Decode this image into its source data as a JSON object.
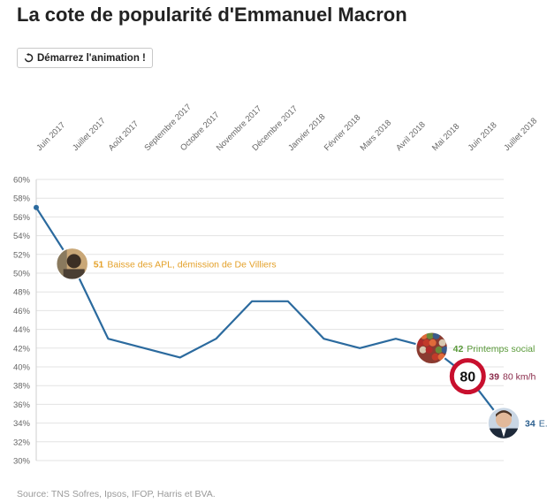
{
  "page": {
    "title": "La cote de popularité d'Emmanuel Macron",
    "button_label": "Démarrez l'animation !",
    "source": "Source: TNS Sofres, Ipsos, IFOP, Harris et BVA."
  },
  "chart_data": {
    "type": "line",
    "title": "La cote de popularité d'Emmanuel Macron",
    "categories": [
      "Juin 2017",
      "Juillet 2017",
      "Août 2017",
      "Septembre 2017",
      "Octobre 2017",
      "Novembre 2017",
      "Décembre 2017",
      "Janvier 2018",
      "Février 2018",
      "Mars 2018",
      "Avril 2018",
      "Mai 2018",
      "Juin 2018",
      "Juillet 2018"
    ],
    "series": [
      {
        "color": "#2b6a9e",
        "points": [
          {
            "x": "Juin 2017",
            "y": 57
          },
          {
            "x": "Juillet 2017",
            "y": 51
          },
          {
            "x": "Août 2017",
            "y": 43
          },
          {
            "x": "Octobre 2017",
            "y": 41
          },
          {
            "x": "Novembre 2017",
            "y": 43
          },
          {
            "x": "Décembre 2017",
            "y": 47
          },
          {
            "x": "Janvier 2018",
            "y": 47
          },
          {
            "x": "Février 2018",
            "y": 43
          },
          {
            "x": "Mars 2018",
            "y": 42
          },
          {
            "x": "Avril 2018",
            "y": 43
          },
          {
            "x": "Mai 2018",
            "y": 42
          },
          {
            "x": "Juin 2018",
            "y": 39
          },
          {
            "x": "Juillet 2018",
            "y": 34
          }
        ]
      }
    ],
    "y_ticks": [
      "60%",
      "58%",
      "56%",
      "54%",
      "52%",
      "50%",
      "48%",
      "46%",
      "44%",
      "42%",
      "40%",
      "38%",
      "36%",
      "34%",
      "32%",
      "30%"
    ],
    "ylim": [
      30,
      60
    ],
    "grid": true,
    "annotations": [
      {
        "x": "Juillet 2017",
        "y": 51,
        "value": "51",
        "text": "Baisse des APL, démission de De Villiers",
        "color": "#e4a12a",
        "icon": "portrait-photo"
      },
      {
        "x": "Mai 2018",
        "y": 42,
        "value": "42",
        "text": "Printemps social",
        "color": "#5a9a3a",
        "icon": "crowd-photo"
      },
      {
        "x": "Juin 2018",
        "y": 39,
        "value": "39",
        "text": "80 km/h",
        "color": "#8a2a4a",
        "icon": "speed-limit-sign",
        "sign_text": "80"
      },
      {
        "x": "Juillet 2018",
        "y": 34,
        "value": "34",
        "text": "E. Macron",
        "color": "#2b5f8e",
        "icon": "macron-portrait"
      }
    ]
  }
}
